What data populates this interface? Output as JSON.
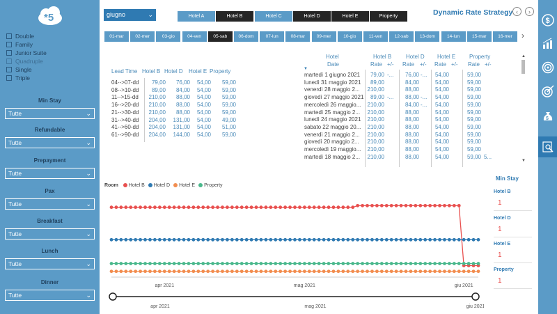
{
  "sidebar": {
    "logo_text": "*5",
    "room_types": [
      {
        "label": "Double",
        "muted": false
      },
      {
        "label": "Family",
        "muted": false
      },
      {
        "label": "Junior Suite",
        "muted": false
      },
      {
        "label": "Quadruple",
        "muted": true
      },
      {
        "label": "Single",
        "muted": false
      },
      {
        "label": "Triple",
        "muted": false
      }
    ],
    "filters": [
      {
        "label": "Min Stay",
        "value": "Tutte"
      },
      {
        "label": "Refundable",
        "value": "Tutte"
      },
      {
        "label": "Prepayment",
        "value": "Tutte"
      },
      {
        "label": "Pax",
        "value": "Tutte"
      },
      {
        "label": "Breakfast",
        "value": "Tutte"
      },
      {
        "label": "Lunch",
        "value": "Tutte"
      },
      {
        "label": "Dinner",
        "value": "Tutte"
      }
    ]
  },
  "header": {
    "month": "giugno",
    "hotels": [
      "Hotel A",
      "Hotel B",
      "Hotel C",
      "Hotel D",
      "Hotel E",
      "Property"
    ],
    "title": "Dynamic Rate Strategy"
  },
  "days": [
    "01-mar",
    "02-mer",
    "03-gio",
    "04-ven",
    "05-sab",
    "06-dom",
    "07-lun",
    "08-mar",
    "09-mer",
    "10-gio",
    "11-ven",
    "12-sab",
    "13-dom",
    "14-lun",
    "15-mar",
    "16-mer"
  ],
  "selected_day": "05-sab",
  "lead_table": {
    "headers": [
      "Lead Time",
      "Hotel B",
      "Hotel D",
      "Hotel E",
      "Property"
    ],
    "rows": [
      [
        "04-->07-dd",
        "79,00",
        "76,00",
        "54,00",
        "59,00"
      ],
      [
        "08-->10-dd",
        "89,00",
        "84,00",
        "54,00",
        "59,00"
      ],
      [
        "11-->15-dd",
        "210,00",
        "88,00",
        "54,00",
        "59,00"
      ],
      [
        "16-->20-dd",
        "210,00",
        "88,00",
        "54,00",
        "59,00"
      ],
      [
        "21-->30-dd",
        "210,00",
        "88,00",
        "54,00",
        "59,00"
      ],
      [
        "31-->40-dd",
        "204,00",
        "131,00",
        "54,00",
        "49,00"
      ],
      [
        "41-->60-dd",
        "204,00",
        "131,00",
        "54,00",
        "51,00"
      ],
      [
        "61-->90-dd",
        "204,00",
        "144,00",
        "54,00",
        "59,00"
      ]
    ]
  },
  "rate_table": {
    "group_headers": [
      "Hotel",
      "Hotel B",
      "Hotel D",
      "Hotel E",
      "Property"
    ],
    "sub_headers": [
      "Date",
      "Rate",
      "+/-",
      "Rate",
      "+/-",
      "Rate",
      "+/-",
      "Rate",
      "+/-"
    ],
    "rows": [
      [
        "martedì 1 giugno 2021",
        "79,00",
        "-...",
        "76,00",
        "-...",
        "54,00",
        "",
        "59,00",
        ""
      ],
      [
        "lunedì 31 maggio 2021",
        "89,00",
        "",
        "84,00",
        "",
        "54,00",
        "",
        "59,00",
        ""
      ],
      [
        "venerdì 28 maggio 2...",
        "210,00",
        "",
        "88,00",
        "",
        "54,00",
        "",
        "59,00",
        ""
      ],
      [
        "giovedì 27 maggio 2021",
        "89,00",
        "-...",
        "88,00",
        "-...",
        "54,00",
        "",
        "59,00",
        ""
      ],
      [
        "mercoledì 26 maggio...",
        "210,00",
        "",
        "84,00",
        "-...",
        "54,00",
        "",
        "59,00",
        ""
      ],
      [
        "martedì 25 maggio 2...",
        "210,00",
        "",
        "88,00",
        "",
        "54,00",
        "",
        "59,00",
        ""
      ],
      [
        "lunedì 24 maggio 2021",
        "210,00",
        "",
        "88,00",
        "",
        "54,00",
        "",
        "59,00",
        ""
      ],
      [
        "sabato 22 maggio 20...",
        "210,00",
        "",
        "88,00",
        "",
        "54,00",
        "",
        "59,00",
        ""
      ],
      [
        "venerdì 21 maggio 2...",
        "210,00",
        "",
        "88,00",
        "",
        "54,00",
        "",
        "59,00",
        ""
      ],
      [
        "giovedì 20 maggio 2...",
        "210,00",
        "",
        "88,00",
        "",
        "54,00",
        "",
        "59,00",
        ""
      ],
      [
        "mercoledì 19 maggio...",
        "210,00",
        "",
        "88,00",
        "",
        "54,00",
        "",
        "59,00",
        ""
      ],
      [
        "martedì 18 maggio 2...",
        "210,00",
        "",
        "88,00",
        "",
        "54,00",
        "",
        "59,00",
        "5..."
      ]
    ]
  },
  "chart_legend_title": "Room",
  "chart_data": {
    "type": "line",
    "x_tick_labels": [
      "apr 2021",
      "mag 2021",
      "giu 2021"
    ],
    "x_tick_positions": [
      11,
      40,
      73
    ],
    "x_range": [
      0,
      76
    ],
    "ylim": [
      40,
      240
    ],
    "series": [
      {
        "name": "Hotel B",
        "color": "#e8504f",
        "values": [
          210,
          210,
          210,
          210,
          210,
          210,
          210,
          210,
          210,
          210,
          210,
          210,
          210,
          210,
          210,
          210,
          210,
          210,
          210,
          210,
          210,
          210,
          210,
          210,
          210,
          210,
          210,
          210,
          210,
          210,
          210,
          210,
          210,
          210,
          210,
          210,
          210,
          210,
          210,
          210,
          210,
          210,
          210,
          210,
          210,
          210,
          210,
          210,
          210,
          210,
          210,
          214,
          214,
          214,
          214,
          214,
          214,
          214,
          214,
          214,
          214,
          214,
          214,
          214,
          214,
          214,
          214,
          214,
          214,
          214,
          214,
          214,
          214,
          68,
          68,
          68,
          68
        ]
      },
      {
        "name": "Hotel D",
        "color": "#2f7ab2",
        "values": [
          131,
          131,
          131,
          131,
          131,
          131,
          131,
          131,
          131,
          131,
          131,
          131,
          131,
          131,
          131,
          131,
          131,
          131,
          131,
          131,
          131,
          131,
          131,
          131,
          131,
          131,
          131,
          131,
          131,
          131,
          131,
          131,
          131,
          131,
          131,
          131,
          131,
          131,
          131,
          131,
          131,
          131,
          131,
          131,
          131,
          131,
          131,
          131,
          131,
          131,
          131,
          131,
          131,
          131,
          131,
          131,
          131,
          131,
          131,
          131,
          131,
          131,
          131,
          131,
          131,
          131,
          131,
          131,
          131,
          131,
          131,
          131,
          131,
          131,
          131,
          131,
          131
        ]
      },
      {
        "name": "Hotel E",
        "color": "#f28d4f",
        "values": [
          54,
          54,
          54,
          54,
          54,
          54,
          54,
          54,
          54,
          54,
          54,
          54,
          54,
          54,
          54,
          54,
          54,
          54,
          54,
          54,
          54,
          54,
          54,
          54,
          54,
          54,
          54,
          54,
          54,
          54,
          54,
          54,
          54,
          54,
          54,
          54,
          54,
          54,
          54,
          54,
          54,
          54,
          54,
          54,
          54,
          54,
          54,
          54,
          54,
          54,
          54,
          54,
          54,
          54,
          54,
          54,
          54,
          54,
          54,
          54,
          54,
          54,
          54,
          54,
          54,
          54,
          54,
          54,
          54,
          54,
          54,
          54,
          54,
          54,
          54,
          54,
          54
        ]
      },
      {
        "name": "Property",
        "color": "#4ab88c",
        "values": [
          73,
          73,
          73,
          73,
          73,
          73,
          73,
          73,
          73,
          73,
          73,
          73,
          73,
          73,
          73,
          73,
          73,
          73,
          73,
          73,
          73,
          73,
          73,
          73,
          73,
          73,
          73,
          73,
          73,
          73,
          73,
          73,
          73,
          73,
          73,
          73,
          73,
          73,
          73,
          73,
          73,
          73,
          73,
          73,
          73,
          73,
          73,
          73,
          73,
          73,
          73,
          73,
          73,
          73,
          73,
          73,
          73,
          73,
          73,
          73,
          73,
          73,
          73,
          73,
          73,
          73,
          73,
          73,
          73,
          73,
          73,
          73,
          73,
          73,
          73,
          73,
          73
        ]
      }
    ]
  },
  "slider": {
    "labels": [
      "apr 2021",
      "mag 2021",
      "giu 2021"
    ]
  },
  "min_stay": {
    "title": "Min Stay",
    "items": [
      {
        "label": "Hotel B",
        "value": "1"
      },
      {
        "label": "Hotel D",
        "value": "1"
      },
      {
        "label": "Hotel E",
        "value": "1"
      },
      {
        "label": "Property",
        "value": "1"
      }
    ]
  },
  "colors": {
    "accent": "#2f7ab2",
    "sidebar": "#5b9bc7",
    "dark_button": "#252525"
  },
  "icons": [
    "back-icon",
    "forward-icon",
    "dollar-icon",
    "growth-icon",
    "target-icon",
    "money-bag-icon",
    "report-icon"
  ]
}
